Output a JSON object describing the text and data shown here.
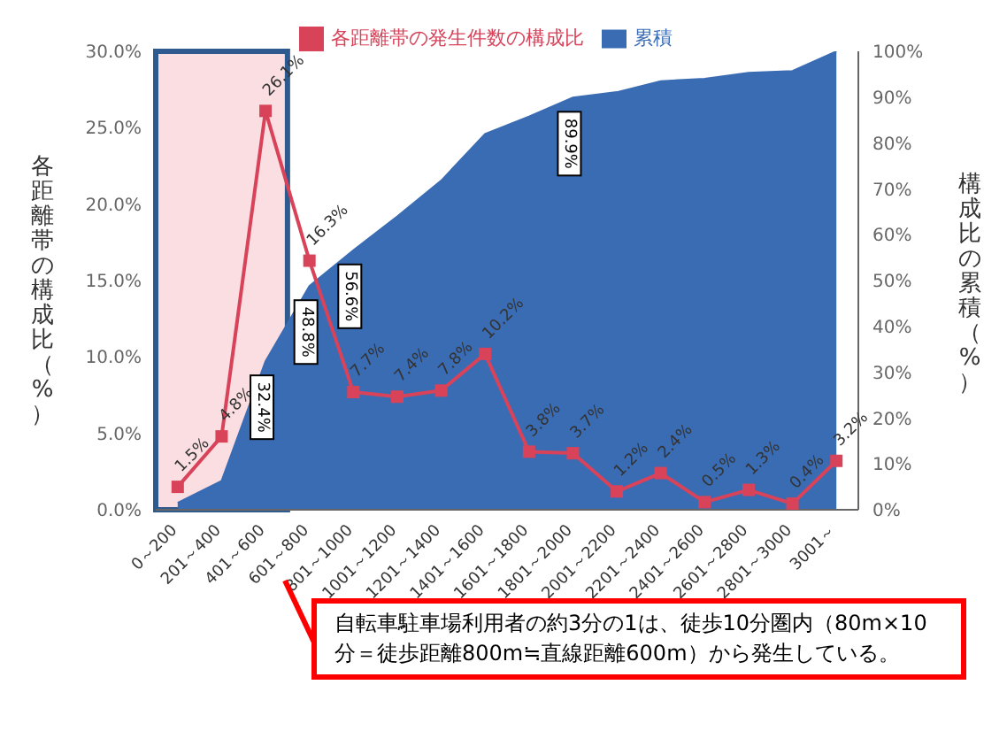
{
  "chart_data": {
    "type": "area",
    "categories": [
      "0～200",
      "201～400",
      "401～600",
      "601～800",
      "801～1000",
      "1001～1200",
      "1201～1400",
      "1401～1600",
      "1601～1800",
      "1801～2000",
      "2001～2200",
      "2201～2400",
      "2401～2600",
      "2601～2800",
      "2801～3000",
      "3001～"
    ],
    "series": [
      {
        "name": "累積",
        "axis": "y2",
        "color": "#3a6cb4",
        "values": [
          1.5,
          6.3,
          32.4,
          48.8,
          56.6,
          64,
          71.8,
          82,
          85.8,
          89.9,
          91.1,
          93.5,
          94,
          95.3,
          95.7,
          100
        ],
        "value_labels": [
          null,
          null,
          "32.4%",
          "48.8%",
          "56.6%",
          null,
          null,
          null,
          null,
          "89.9%",
          null,
          null,
          null,
          null,
          null,
          null
        ]
      },
      {
        "name": "各距離帯の発生件数の構成比",
        "type": "line",
        "color": "#d9435a",
        "marker": "square",
        "values": [
          1.5,
          4.8,
          26.1,
          16.3,
          7.7,
          7.4,
          7.8,
          10.2,
          3.8,
          3.7,
          1.2,
          2.4,
          0.5,
          1.3,
          0.4,
          3.2
        ],
        "value_labels": [
          "1.5%",
          "4.8%",
          "26.1%",
          "16.3%",
          "7.7%",
          "7.4%",
          "7.8%",
          "10.2%",
          "3.8%",
          "3.7%",
          "1.2%",
          "2.4%",
          "0.5%",
          "1.3%",
          "0.4%",
          "3.2%"
        ]
      }
    ],
    "ylabel": "各距離帯の構成比（%）",
    "y2label": "構成比の累積（%）",
    "ylim": [
      0,
      30
    ],
    "yticks": [
      {
        "value": 0,
        "label": "0.0%"
      },
      {
        "value": 5,
        "label": "5.0%"
      },
      {
        "value": 10,
        "label": "10.0%"
      },
      {
        "value": 15,
        "label": "15.0%"
      },
      {
        "value": 20,
        "label": "20.0%"
      },
      {
        "value": 25,
        "label": "25.0%"
      },
      {
        "value": 30,
        "label": "30.0%"
      }
    ],
    "y2lim": [
      0,
      100
    ],
    "y2ticks": [
      {
        "value": 0,
        "label": "0%"
      },
      {
        "value": 10,
        "label": "10%"
      },
      {
        "value": 20,
        "label": "20%"
      },
      {
        "value": 30,
        "label": "30%"
      },
      {
        "value": 40,
        "label": "40%"
      },
      {
        "value": 50,
        "label": "50%"
      },
      {
        "value": 60,
        "label": "60%"
      },
      {
        "value": 70,
        "label": "70%"
      },
      {
        "value": 80,
        "label": "80%"
      },
      {
        "value": 90,
        "label": "90%"
      },
      {
        "value": 100,
        "label": "100%"
      }
    ],
    "bands": [
      {
        "axis": "x",
        "from": "0～200",
        "to": "401～600",
        "color": "#f4a0a8"
      }
    ],
    "legend": "top",
    "annotations": [
      "自転車駐車場利用者の約3分の1は、徒歩10分圏内（80m×10分＝徒歩距離800m≒直線距離600m）から発生している。"
    ]
  }
}
